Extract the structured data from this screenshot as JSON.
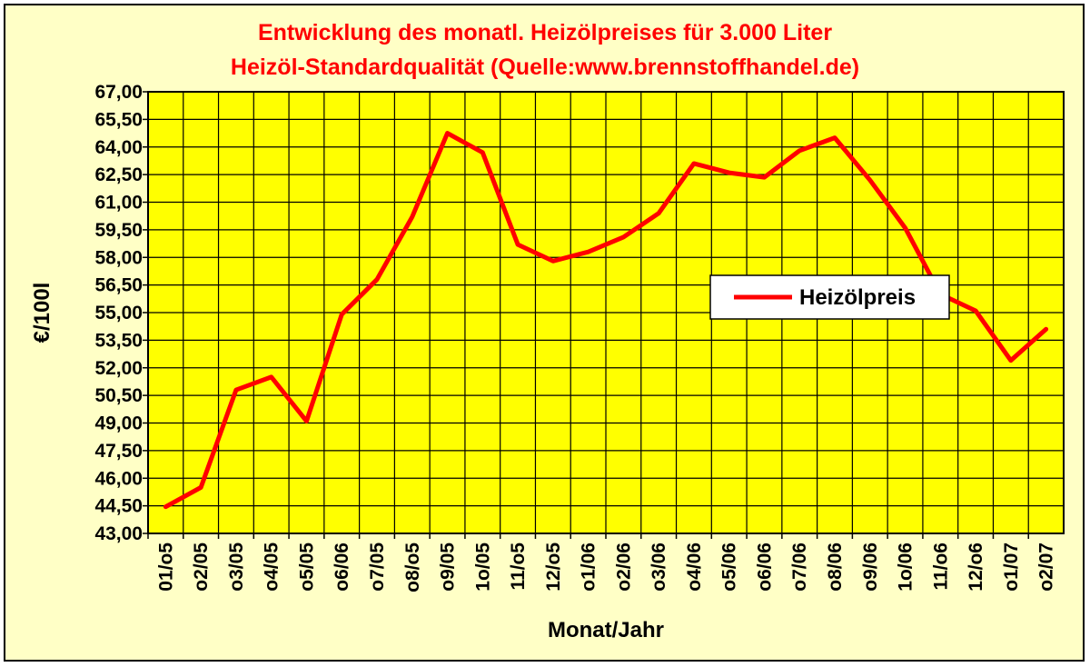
{
  "colors": {
    "plot_background": "#ffff00",
    "chart_background": "#ffffc6",
    "series_line": "#ff0000",
    "title": "#ff0000",
    "grid": "#000000"
  },
  "chart_data": {
    "type": "line",
    "title": "Entwicklung des monatl. Heizölpreises für 3.000 Liter",
    "subtitle": "Heizöl-Standardqualität (Quelle:www.brennstoffhandel.de)",
    "xlabel": "Monat/Jahr",
    "ylabel": "€/100l",
    "categories": [
      "01/o5",
      "o2/05",
      "o3/05",
      "o4/05",
      "o5/05",
      "o6/06",
      "o7/05",
      "o8/o5",
      "o9/05",
      "1o/05",
      "11/o5",
      "12/o5",
      "o1/06",
      "o2/06",
      "o3/06",
      "o4/06",
      "o5/06",
      "o6/06",
      "o7/06",
      "o8/06",
      "o9/06",
      "1o/06",
      "11/o6",
      "12/o6",
      "o1/07",
      "o2/07"
    ],
    "ylim": [
      43,
      67
    ],
    "yticks": [
      "43,00",
      "44,50",
      "46,00",
      "47,50",
      "49,00",
      "50,50",
      "52,00",
      "53,50",
      "55,00",
      "56,50",
      "58,00",
      "59,50",
      "61,00",
      "62,50",
      "64,00",
      "65,50",
      "67,00"
    ],
    "grid": true,
    "legend_position": "right",
    "series": [
      {
        "name": "Heizölpreis",
        "values": [
          44.45,
          45.5,
          50.8,
          51.5,
          49.1,
          54.9,
          56.8,
          60.2,
          64.75,
          63.7,
          58.7,
          57.8,
          58.3,
          59.1,
          60.4,
          63.1,
          62.6,
          62.35,
          63.8,
          64.5,
          62.2,
          59.6,
          56.0,
          55.1,
          52.4,
          54.1
        ]
      }
    ]
  }
}
